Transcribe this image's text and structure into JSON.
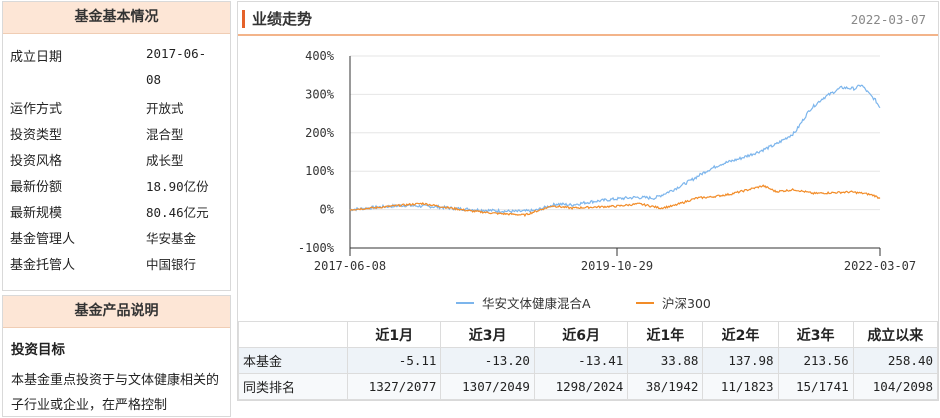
{
  "basic_info": {
    "title": "基金基本情况",
    "rows": [
      {
        "label": "成立日期",
        "value": "2017-06-",
        "value2": "08"
      },
      {
        "label": "运作方式",
        "value": "开放式"
      },
      {
        "label": "投资类型",
        "value": "混合型"
      },
      {
        "label": "投资风格",
        "value": "成长型"
      },
      {
        "label": "最新份额",
        "value": "18.90亿份"
      },
      {
        "label": "最新规模",
        "value": "80.46亿元"
      },
      {
        "label": "基金管理人",
        "value": "华安基金"
      },
      {
        "label": "基金托管人",
        "value": "中国银行"
      }
    ]
  },
  "product_desc": {
    "title": "基金产品说明",
    "section_title": "投资目标",
    "text": "本基金重点投资于与文体健康相关的子行业或企业，在严格控制"
  },
  "performance": {
    "title": "业绩走势",
    "date": "2022-03-07"
  },
  "chart_data": {
    "type": "line",
    "x_ticks": [
      "2017-06-08",
      "2019-10-29",
      "2022-03-07"
    ],
    "y_ticks": [
      "400%",
      "300%",
      "200%",
      "100%",
      "0%",
      "-100%"
    ],
    "ylim": [
      -100,
      400
    ],
    "x_range": [
      "2017-06-08",
      "2022-03-07"
    ],
    "grid": "horizontal",
    "legend_position": "bottom",
    "series": [
      {
        "name": "华安文体健康混合A",
        "color": "#7cb5ec",
        "points": [
          [
            "2017-06-08",
            0
          ],
          [
            "2017-09-01",
            6
          ],
          [
            "2017-12-01",
            11
          ],
          [
            "2018-03-01",
            8
          ],
          [
            "2018-06-01",
            2
          ],
          [
            "2018-09-01",
            -2
          ],
          [
            "2018-12-01",
            -5
          ],
          [
            "2019-02-01",
            -3
          ],
          [
            "2019-04-15",
            15
          ],
          [
            "2019-06-01",
            12
          ],
          [
            "2019-08-01",
            20
          ],
          [
            "2019-10-29",
            28
          ],
          [
            "2020-01-01",
            32
          ],
          [
            "2020-03-01",
            30
          ],
          [
            "2020-05-01",
            52
          ],
          [
            "2020-07-01",
            78
          ],
          [
            "2020-08-15",
            100
          ],
          [
            "2020-10-01",
            118
          ],
          [
            "2020-12-01",
            132
          ],
          [
            "2021-02-01",
            150
          ],
          [
            "2021-04-01",
            170
          ],
          [
            "2021-06-01",
            200
          ],
          [
            "2021-07-20",
            260
          ],
          [
            "2021-09-01",
            290
          ],
          [
            "2021-11-01",
            318
          ],
          [
            "2021-12-15",
            315
          ],
          [
            "2022-01-05",
            325
          ],
          [
            "2022-02-01",
            300
          ],
          [
            "2022-02-20",
            285
          ],
          [
            "2022-03-07",
            265
          ]
        ]
      },
      {
        "name": "沪深300",
        "color": "#f28c28",
        "points": [
          [
            "2017-06-08",
            0
          ],
          [
            "2017-09-01",
            5
          ],
          [
            "2017-12-01",
            12
          ],
          [
            "2018-02-01",
            16
          ],
          [
            "2018-04-01",
            8
          ],
          [
            "2018-07-01",
            -3
          ],
          [
            "2018-10-01",
            -10
          ],
          [
            "2019-01-01",
            -14
          ],
          [
            "2019-04-01",
            10
          ],
          [
            "2019-06-01",
            4
          ],
          [
            "2019-08-01",
            6
          ],
          [
            "2019-10-29",
            9
          ],
          [
            "2020-01-10",
            15
          ],
          [
            "2020-03-20",
            4
          ],
          [
            "2020-05-01",
            10
          ],
          [
            "2020-07-15",
            30
          ],
          [
            "2020-09-01",
            33
          ],
          [
            "2020-11-01",
            40
          ],
          [
            "2021-01-01",
            52
          ],
          [
            "2021-02-18",
            62
          ],
          [
            "2021-04-01",
            47
          ],
          [
            "2021-06-01",
            52
          ],
          [
            "2021-08-01",
            42
          ],
          [
            "2021-10-01",
            44
          ],
          [
            "2021-12-01",
            46
          ],
          [
            "2022-01-15",
            42
          ],
          [
            "2022-02-15",
            37
          ],
          [
            "2022-03-07",
            29
          ]
        ]
      }
    ]
  },
  "table": {
    "headers": [
      "",
      "近1月",
      "近3月",
      "近6月",
      "近1年",
      "近2年",
      "近3年",
      "成立以来"
    ],
    "rows": [
      {
        "label": "本基金",
        "values": [
          "-5.11",
          "-13.20",
          "-13.41",
          "33.88",
          "137.98",
          "213.56",
          "258.40"
        ]
      },
      {
        "label": "同类排名",
        "values": [
          "1327/2077",
          "1307/2049",
          "1298/2024",
          "38/1942",
          "11/1823",
          "15/1741",
          "104/2098"
        ]
      }
    ]
  }
}
